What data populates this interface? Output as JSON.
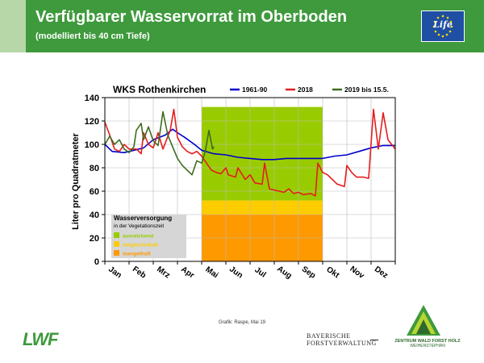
{
  "header": {
    "title": "Verfügbarer Wasservorrat im Oberboden",
    "subtitle": "(modelliert bis 40 cm Tiefe)",
    "eu_logo_text": "Life",
    "colors": {
      "bar": "#3e9a3c",
      "strip": "#b7d7a8"
    }
  },
  "footer": {
    "credit": "Grafik: Raspe, Mai 19",
    "lwf_logo": "LWF",
    "bfv_line1": "BAYERISCHE",
    "bfv_line2": "FORSTVERWALTUNG",
    "zw_line1": "ZENTRUM WALD FORST HOLZ",
    "zw_line2": "WEIHENSTEPHAN"
  },
  "chart_data": {
    "type": "line",
    "title": "WKS Rothenkirchen",
    "ylabel": "Liter pro Quadratmeter",
    "xlabel": "",
    "ylim": [
      0,
      140
    ],
    "yticks": [
      "0",
      "20",
      "40",
      "60",
      "80",
      "100",
      "120",
      "140"
    ],
    "categories": [
      "Jan",
      "Feb",
      "Mrz",
      "Apr",
      "Mai",
      "Jun",
      "Jul",
      "Aug",
      "Sep",
      "Okt",
      "Nov",
      "Dez"
    ],
    "grid": true,
    "legend_position": "top",
    "vegetation_period": {
      "start_month": 4,
      "end_month": 9,
      "box_title": "Wasserversorgung",
      "box_subtitle": "in der Vegetationszeit",
      "bands": [
        {
          "label": "ausreichend",
          "from": 52,
          "to": 132,
          "color": "#99cc00"
        },
        {
          "label": "eingeschränkt",
          "from": 40,
          "to": 52,
          "color": "#ffcc00"
        },
        {
          "label": "mangelhaft",
          "from": 0,
          "to": 40,
          "color": "#ff9900"
        }
      ]
    },
    "series": [
      {
        "name": "1961-90",
        "color": "#0000cc",
        "points": [
          [
            0,
            100
          ],
          [
            0.3,
            94
          ],
          [
            0.8,
            93
          ],
          [
            1.2,
            95
          ],
          [
            1.6,
            97
          ],
          [
            2.0,
            104
          ],
          [
            2.5,
            108
          ],
          [
            2.8,
            113
          ],
          [
            3.0,
            110
          ],
          [
            3.3,
            106
          ],
          [
            3.7,
            100
          ],
          [
            4.0,
            95
          ],
          [
            4.5,
            92
          ],
          [
            5.0,
            91
          ],
          [
            5.5,
            89
          ],
          [
            6.0,
            88
          ],
          [
            6.5,
            87
          ],
          [
            7.0,
            87
          ],
          [
            7.5,
            88
          ],
          [
            8.0,
            88
          ],
          [
            8.5,
            88
          ],
          [
            9.0,
            88
          ],
          [
            9.5,
            90
          ],
          [
            10.0,
            91
          ],
          [
            10.5,
            94
          ],
          [
            11.0,
            97
          ],
          [
            11.5,
            99
          ],
          [
            12,
            99
          ]
        ]
      },
      {
        "name": "2018",
        "color": "#e51c1c",
        "points": [
          [
            0,
            119
          ],
          [
            0.2,
            108
          ],
          [
            0.4,
            96
          ],
          [
            0.6,
            94
          ],
          [
            0.8,
            100
          ],
          [
            1.0,
            96
          ],
          [
            1.3,
            96
          ],
          [
            1.5,
            92
          ],
          [
            1.6,
            110
          ],
          [
            1.8,
            100
          ],
          [
            2.0,
            97
          ],
          [
            2.2,
            110
          ],
          [
            2.4,
            96
          ],
          [
            2.7,
            112
          ],
          [
            2.85,
            130
          ],
          [
            3.0,
            106
          ],
          [
            3.2,
            98
          ],
          [
            3.4,
            94
          ],
          [
            3.6,
            92
          ],
          [
            3.8,
            94
          ],
          [
            4.0,
            90
          ],
          [
            4.2,
            84
          ],
          [
            4.4,
            78
          ],
          [
            4.6,
            76
          ],
          [
            4.8,
            75
          ],
          [
            5.0,
            80
          ],
          [
            5.1,
            74
          ],
          [
            5.4,
            72
          ],
          [
            5.5,
            80
          ],
          [
            5.8,
            70
          ],
          [
            6.0,
            74
          ],
          [
            6.2,
            67
          ],
          [
            6.5,
            66
          ],
          [
            6.6,
            84
          ],
          [
            6.8,
            62
          ],
          [
            7.0,
            61
          ],
          [
            7.2,
            60
          ],
          [
            7.4,
            59
          ],
          [
            7.6,
            62
          ],
          [
            7.8,
            58
          ],
          [
            8.0,
            59
          ],
          [
            8.2,
            57
          ],
          [
            8.5,
            58
          ],
          [
            8.7,
            56
          ],
          [
            8.8,
            84
          ],
          [
            9.0,
            76
          ],
          [
            9.2,
            74
          ],
          [
            9.4,
            70
          ],
          [
            9.6,
            66
          ],
          [
            9.9,
            64
          ],
          [
            10.0,
            82
          ],
          [
            10.2,
            76
          ],
          [
            10.4,
            72
          ],
          [
            10.7,
            72
          ],
          [
            10.9,
            71
          ],
          [
            11.1,
            130
          ],
          [
            11.3,
            96
          ],
          [
            11.5,
            127
          ],
          [
            11.7,
            104
          ],
          [
            12,
            96
          ]
        ]
      },
      {
        "name": "2019 bis 15.5.",
        "color": "#3f6b1e",
        "points": [
          [
            0,
            100
          ],
          [
            0.2,
            107
          ],
          [
            0.4,
            100
          ],
          [
            0.6,
            104
          ],
          [
            0.8,
            96
          ],
          [
            1.0,
            93
          ],
          [
            1.2,
            98
          ],
          [
            1.3,
            112
          ],
          [
            1.5,
            118
          ],
          [
            1.6,
            104
          ],
          [
            1.8,
            115
          ],
          [
            2.0,
            103
          ],
          [
            2.2,
            99
          ],
          [
            2.4,
            128
          ],
          [
            2.6,
            108
          ],
          [
            2.8,
            98
          ],
          [
            3.0,
            88
          ],
          [
            3.2,
            82
          ],
          [
            3.4,
            78
          ],
          [
            3.6,
            74
          ],
          [
            3.8,
            86
          ],
          [
            4.0,
            84
          ],
          [
            4.15,
            94
          ],
          [
            4.3,
            112
          ],
          [
            4.45,
            96
          ],
          [
            4.5,
            98
          ]
        ]
      }
    ]
  }
}
